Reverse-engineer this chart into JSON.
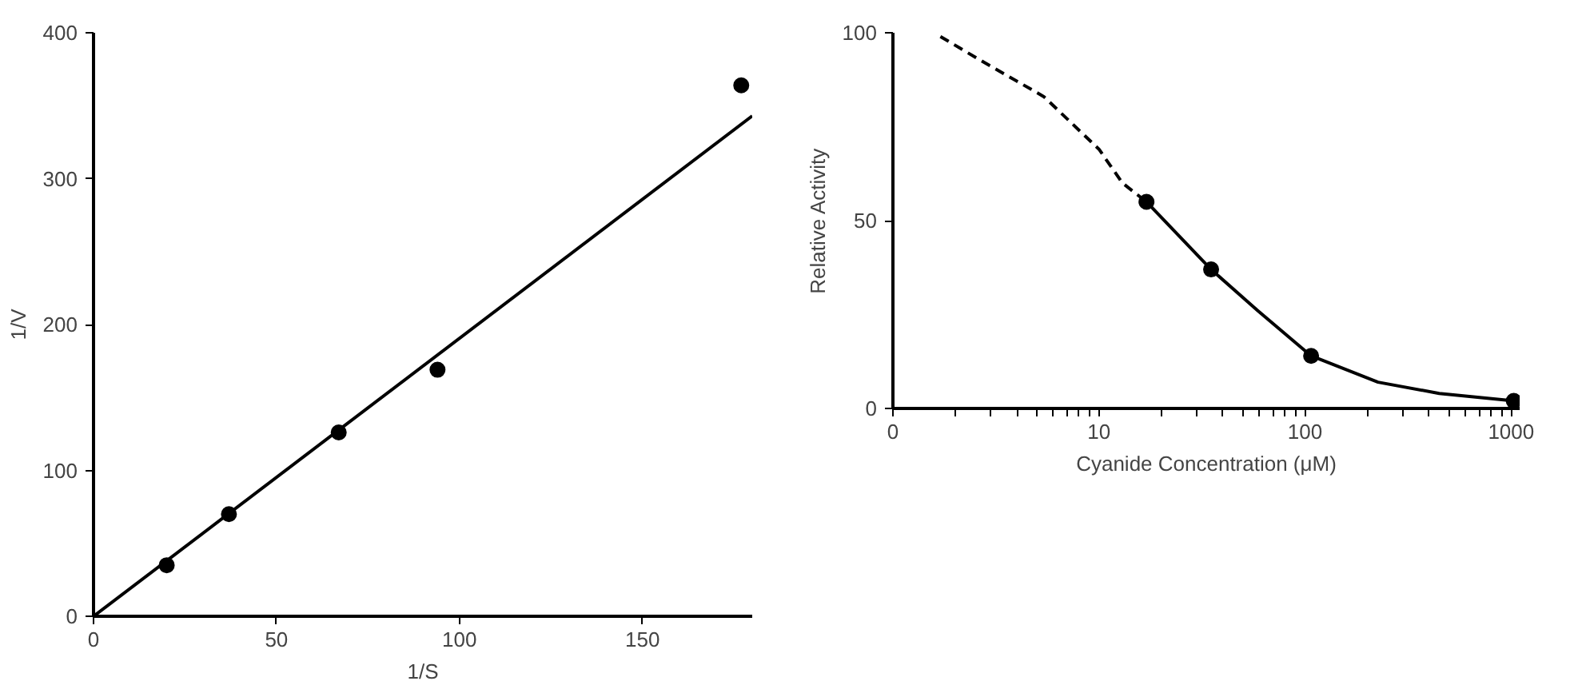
{
  "chart_data": [
    {
      "type": "scatter",
      "xlabel": "1/S",
      "ylabel": "1/V",
      "xlim": [
        0,
        180
      ],
      "ylim": [
        0,
        400
      ],
      "xticks": [
        0,
        50,
        100,
        150
      ],
      "yticks": [
        0,
        100,
        200,
        300,
        400
      ],
      "grid": false,
      "marker": "circle",
      "series": [
        {
          "color": "#000000",
          "x": [
            20,
            37,
            67,
            94,
            177
          ],
          "values": [
            35,
            70,
            126,
            169,
            364
          ]
        },
        {
          "type": "line",
          "color": "#000000",
          "line_style": "solid",
          "marker": "none",
          "x": [
            0,
            180
          ],
          "values": [
            0,
            343
          ]
        }
      ]
    },
    {
      "type": "scatter",
      "xlabel": "Cyanide Concentration (μM)",
      "ylabel": "Relative Activity",
      "log": "x",
      "xlim": [
        0,
        1100
      ],
      "ylim": [
        0,
        100
      ],
      "xticks": [
        0,
        {
          "value": 2,
          "label": null
        },
        {
          "value": 3,
          "label": null
        },
        {
          "value": 4,
          "label": null
        },
        {
          "value": 5,
          "label": null
        },
        {
          "value": 6,
          "label": null
        },
        {
          "value": 7,
          "label": null
        },
        {
          "value": 8,
          "label": null
        },
        {
          "value": 9,
          "label": null
        },
        10,
        {
          "value": 20,
          "label": null
        },
        {
          "value": 30,
          "label": null
        },
        {
          "value": 40,
          "label": null
        },
        {
          "value": 50,
          "label": null
        },
        {
          "value": 60,
          "label": null
        },
        {
          "value": 70,
          "label": null
        },
        {
          "value": 80,
          "label": null
        },
        {
          "value": 90,
          "label": null
        },
        100,
        {
          "value": 200,
          "label": null
        },
        {
          "value": 300,
          "label": null
        },
        {
          "value": 400,
          "label": null
        },
        {
          "value": 500,
          "label": null
        },
        {
          "value": 600,
          "label": null
        },
        {
          "value": 700,
          "label": null
        },
        {
          "value": 800,
          "label": null
        },
        {
          "value": 900,
          "label": null
        },
        1000
      ],
      "yticks": [
        0,
        50,
        100
      ],
      "grid": false,
      "marker": "circle",
      "series": [
        {
          "type": "line",
          "color": "#000000",
          "line_style": "dashed",
          "marker": "none",
          "x": [
            1.7,
            2.6,
            5.4,
            10,
            13,
            17
          ],
          "values": [
            99,
            93,
            83,
            69,
            60,
            55
          ]
        },
        {
          "type": "line",
          "color": "#000000",
          "line_style": "solid",
          "marker": "none",
          "x": [
            17,
            35,
            59,
            107,
            226,
            448,
            1030
          ],
          "values": [
            55,
            37,
            26,
            14,
            7,
            4,
            2
          ]
        },
        {
          "color": "#000000",
          "x": [
            17,
            35,
            107,
            1030
          ],
          "values": [
            55,
            37,
            14,
            2
          ]
        }
      ]
    }
  ]
}
